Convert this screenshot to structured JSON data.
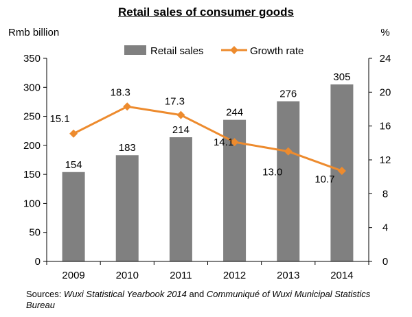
{
  "chart_data": {
    "type": "bar+line",
    "title": "Retail sales of consumer goods",
    "categories": [
      "2009",
      "2010",
      "2011",
      "2012",
      "2013",
      "2014"
    ],
    "series": [
      {
        "name": "Retail sales",
        "type": "bar",
        "axis": "left",
        "values": [
          154,
          183,
          214,
          244,
          276,
          305
        ],
        "color": "#808080"
      },
      {
        "name": "Growth rate",
        "type": "line",
        "axis": "right",
        "values": [
          15.1,
          18.3,
          17.3,
          14.1,
          13.0,
          10.7
        ],
        "color": "#ED8B2E"
      }
    ],
    "y_left": {
      "label": "Rmb billion",
      "min": 0,
      "max": 350,
      "ticks": [
        "0",
        "50",
        "100",
        "150",
        "200",
        "250",
        "300",
        "350"
      ]
    },
    "y_right": {
      "label": "%",
      "min": 0,
      "max": 24,
      "ticks": [
        "0",
        "4",
        "8",
        "12",
        "16",
        "20",
        "24"
      ]
    },
    "bar_labels": [
      "154",
      "183",
      "214",
      "244",
      "276",
      "305"
    ],
    "line_labels": [
      "15.1",
      "18.3",
      "17.3",
      "14.1",
      "13.0",
      "10.7"
    ],
    "legend_position": "top",
    "grid": false
  },
  "source": {
    "prefix": "Sources: ",
    "part1": "Wuxi Statistical Yearbook 2014",
    "middle": "  and ",
    "part2": "Communiqué of Wuxi Municipal Statistics Bureau"
  }
}
